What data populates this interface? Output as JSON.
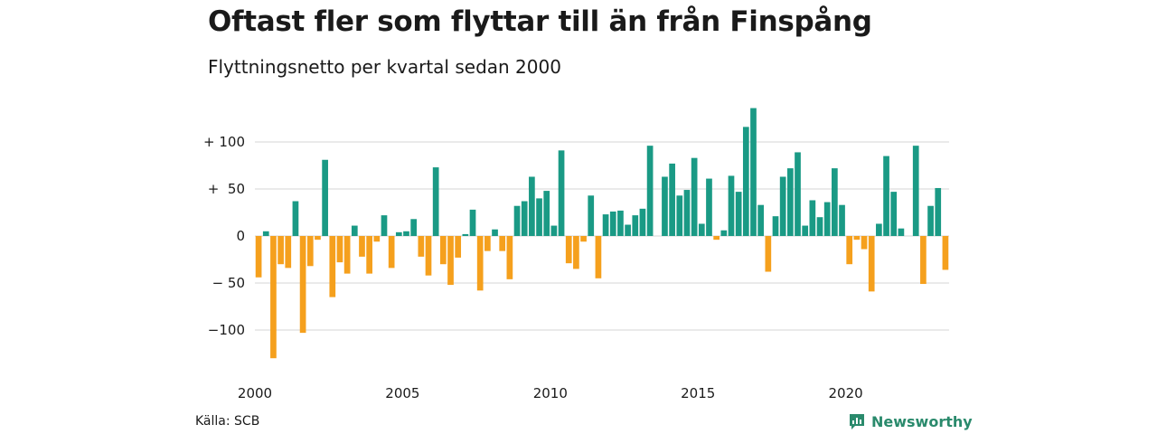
{
  "title": "Oftast fler som flyttar till än från Finspång",
  "subtitle": "Flyttningsnetto per kvartal sedan 2000",
  "source": "Källa: SCB",
  "brand": {
    "name": "Newsworthy",
    "icon": "newsworthy-logo-icon"
  },
  "colors": {
    "positive": "#1a9a85",
    "negative": "#f5a01d",
    "grid": "#dddddd",
    "text": "#1a1a1a",
    "brand": "#2a8a6c"
  },
  "chart_data": {
    "type": "bar",
    "title": "Oftast fler som flyttar till än från Finspång",
    "subtitle": "Flyttningsnetto per kvartal sedan 2000",
    "xlabel": "",
    "ylabel": "",
    "x_start": "2000-Q1",
    "frequency": "quarterly",
    "ylim": [
      -135,
      140
    ],
    "y_ticks": [
      100,
      50,
      0,
      -50,
      -100
    ],
    "y_tick_labels": [
      "+ 100",
      "+  50",
      "0",
      "− 50",
      "−100"
    ],
    "x_ticks": [
      "2000",
      "2005",
      "2010",
      "2015",
      "2020"
    ],
    "grid": true,
    "values": [
      -44,
      5,
      -130,
      -30,
      -34,
      37,
      -103,
      -32,
      -4,
      81,
      -65,
      -28,
      -40,
      11,
      -22,
      -40,
      -6,
      22,
      -34,
      4,
      5,
      18,
      -22,
      -42,
      73,
      -30,
      -52,
      -23,
      2,
      28,
      -58,
      -16,
      7,
      -16,
      -46,
      32,
      37,
      63,
      40,
      48,
      11,
      91,
      -29,
      -35,
      -6,
      43,
      -45,
      23,
      26,
      27,
      12,
      22,
      29,
      96,
      0,
      63,
      77,
      43,
      49,
      83,
      13,
      61,
      -4,
      6,
      64,
      47,
      116,
      136,
      33,
      -38,
      21,
      63,
      72,
      89,
      11,
      38,
      20,
      36,
      72,
      33,
      -30,
      -4,
      -14,
      -59,
      13,
      85,
      47,
      8,
      0,
      96,
      -51,
      32,
      51,
      -36
    ]
  }
}
